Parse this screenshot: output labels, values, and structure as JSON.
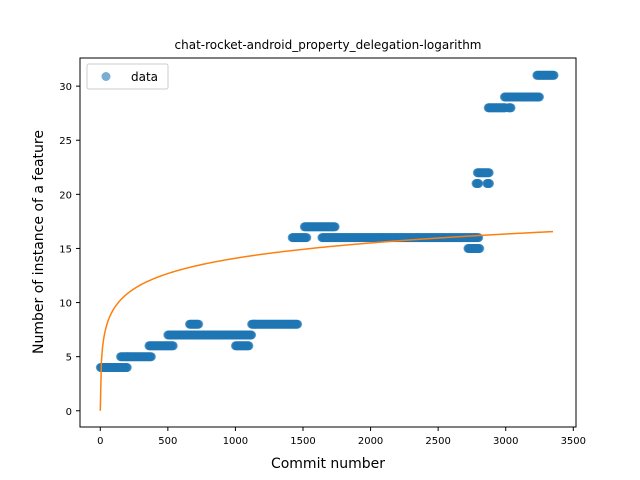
{
  "chart_data": {
    "type": "scatter",
    "title": "chat-rocket-android_property_delegation-logarithm",
    "xlabel": "Commit number",
    "ylabel": "Number of instance of a feature",
    "xlim": [
      -150,
      3520
    ],
    "ylim": [
      -1.5,
      32.6
    ],
    "xticks": [
      0,
      500,
      1000,
      1500,
      2000,
      2500,
      3000,
      3500
    ],
    "yticks": [
      0,
      5,
      10,
      15,
      20,
      25,
      30
    ],
    "legend": {
      "position": "top-left",
      "entries": [
        "data"
      ]
    },
    "colors": {
      "data": "#1f77b4",
      "fit": "#ff7f0e"
    },
    "grid": false,
    "series": [
      {
        "name": "data",
        "kind": "scatter",
        "segments": [
          {
            "x": [
              0,
              200
            ],
            "y": 4
          },
          {
            "x": [
              150,
              380
            ],
            "y": 5
          },
          {
            "x": [
              360,
              540
            ],
            "y": 6
          },
          {
            "x": [
              500,
              1120
            ],
            "y": 7
          },
          {
            "x": [
              660,
              730
            ],
            "y": 8
          },
          {
            "x": [
              1000,
              1100
            ],
            "y": 6
          },
          {
            "x": [
              1120,
              1460
            ],
            "y": 8
          },
          {
            "x": [
              1420,
              1530
            ],
            "y": 16
          },
          {
            "x": [
              1510,
              1740
            ],
            "y": 17
          },
          {
            "x": [
              1640,
              2800
            ],
            "y": 16
          },
          {
            "x": [
              2720,
              2810
            ],
            "y": 15
          },
          {
            "x": [
              2780,
              2800
            ],
            "y": 21
          },
          {
            "x": [
              2790,
              2880
            ],
            "y": 22
          },
          {
            "x": [
              2860,
              2880
            ],
            "y": 21
          },
          {
            "x": [
              2870,
              3000
            ],
            "y": 28
          },
          {
            "x": [
              2990,
              3250
            ],
            "y": 29
          },
          {
            "x": [
              3020,
              3040
            ],
            "y": 28
          },
          {
            "x": [
              3230,
              3360
            ],
            "y": 31
          }
        ]
      },
      {
        "kind": "line",
        "function": "2.04*ln(x+1)",
        "x_range": [
          0,
          3350
        ]
      }
    ]
  }
}
